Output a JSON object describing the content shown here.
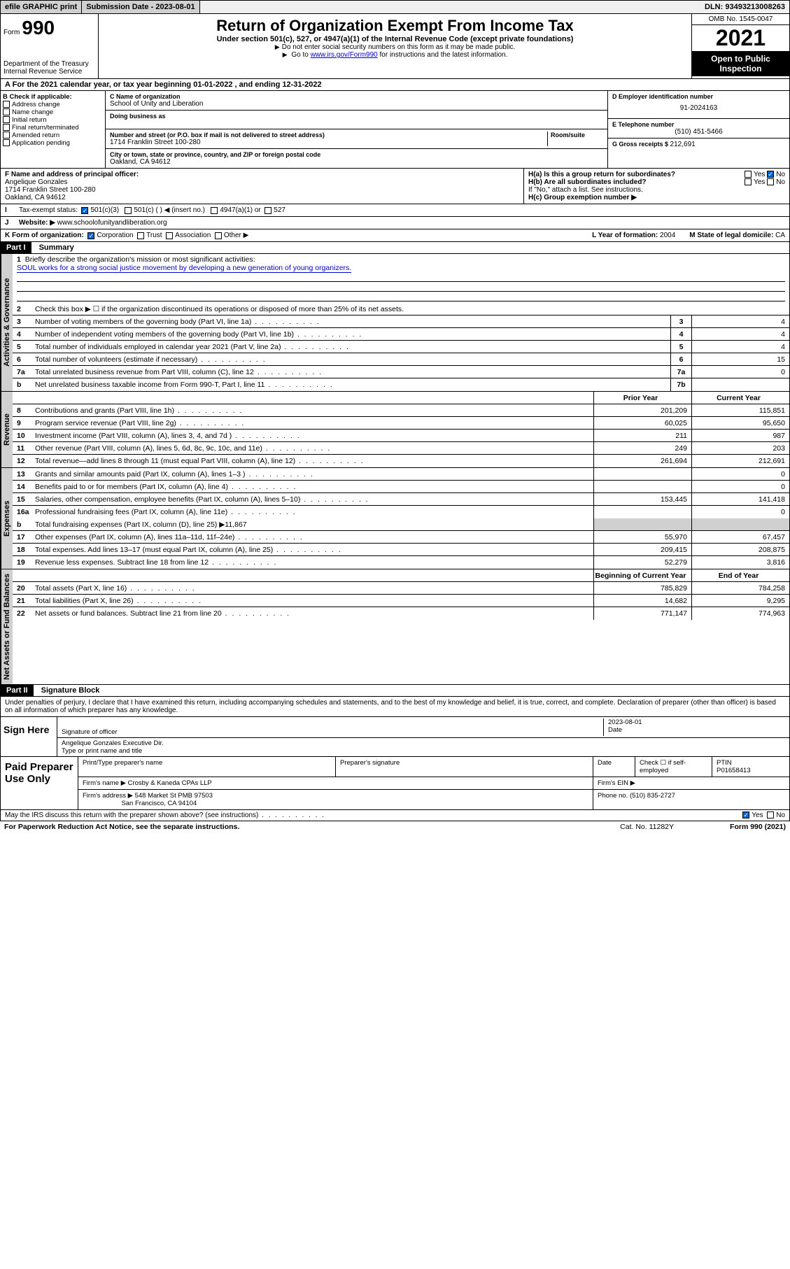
{
  "topbar": {
    "efile": "efile GRAPHIC print",
    "submission_label": "Submission Date - ",
    "submission_date": "2023-08-01",
    "dln_label": "DLN: ",
    "dln": "93493213008263"
  },
  "header": {
    "form_prefix": "Form",
    "form_number": "990",
    "dept": "Department of the Treasury",
    "irs": "Internal Revenue Service",
    "title": "Return of Organization Exempt From Income Tax",
    "subtitle": "Under section 501(c), 527, or 4947(a)(1) of the Internal Revenue Code (except private foundations)",
    "inst1": "Do not enter social security numbers on this form as it may be made public.",
    "inst2_pre": "Go to ",
    "inst2_link": "www.irs.gov/Form990",
    "inst2_post": " for instructions and the latest information.",
    "omb": "OMB No. 1545-0047",
    "year": "2021",
    "open": "Open to Public Inspection"
  },
  "row_a": {
    "text_pre": "For the 2021 calendar year, or tax year beginning ",
    "begin": "01-01-2022",
    "text_mid": " , and ending ",
    "end": "12-31-2022"
  },
  "b": {
    "heading": "B Check if applicable:",
    "items": [
      "Address change",
      "Name change",
      "Initial return",
      "Final return/terminated",
      "Amended return",
      "Application pending"
    ]
  },
  "c": {
    "name_lbl": "C Name of organization",
    "name": "School of Unity and Liberation",
    "dba_lbl": "Doing business as",
    "street_lbl": "Number and street (or P.O. box if mail is not delivered to street address)",
    "room_lbl": "Room/suite",
    "street": "1714 Franklin Street 100-280",
    "city_lbl": "City or town, state or province, country, and ZIP or foreign postal code",
    "city": "Oakland, CA  94612"
  },
  "d": {
    "ein_lbl": "D Employer identification number",
    "ein": "91-2024163",
    "phone_lbl": "E Telephone number",
    "phone": "(510) 451-5466",
    "gross_lbl": "G Gross receipts $ ",
    "gross": "212,691"
  },
  "f": {
    "lbl": "F Name and address of principal officer:",
    "name": "Angelique Gonzales",
    "addr1": "1714 Franklin Street 100-280",
    "addr2": "Oakland, CA  94612"
  },
  "h": {
    "a_lbl": "H(a)  Is this a group return for subordinates?",
    "a_yes": "Yes",
    "a_no": "No",
    "b_lbl": "H(b)  Are all subordinates included?",
    "b_yes": "Yes",
    "b_no": "No",
    "b_note": "If \"No,\" attach a list. See instructions.",
    "c_lbl": "H(c)  Group exemption number ▶"
  },
  "i": {
    "lbl": "Tax-exempt status:",
    "o1": "501(c)(3)",
    "o2": "501(c) (  ) ◀ (insert no.)",
    "o3": "4947(a)(1) or",
    "o4": "527"
  },
  "j": {
    "lbl": "Website: ▶",
    "val": "www.schoolofunityandliberation.org"
  },
  "k": {
    "lbl": "K Form of organization:",
    "o1": "Corporation",
    "o2": "Trust",
    "o3": "Association",
    "o4": "Other ▶",
    "l_lbl": "L Year of formation: ",
    "l_val": "2004",
    "m_lbl": "M State of legal domicile: ",
    "m_val": "CA"
  },
  "part1": {
    "header": "Part I",
    "title": "Summary",
    "tabs": {
      "gov": "Activities & Governance",
      "rev": "Revenue",
      "exp": "Expenses",
      "net": "Net Assets or Fund Balances"
    },
    "line1_lbl": "Briefly describe the organization's mission or most significant activities:",
    "line1_val": "SOUL works for a strong social justice movement by developing a new generation of young organizers.",
    "line2": "Check this box ▶ ☐  if the organization discontinued its operations or disposed of more than 25% of its net assets.",
    "lines_simple": [
      {
        "n": "3",
        "t": "Number of voting members of the governing body (Part VI, line 1a)",
        "b": "3",
        "v": "4"
      },
      {
        "n": "4",
        "t": "Number of independent voting members of the governing body (Part VI, line 1b)",
        "b": "4",
        "v": "4"
      },
      {
        "n": "5",
        "t": "Total number of individuals employed in calendar year 2021 (Part V, line 2a)",
        "b": "5",
        "v": "4"
      },
      {
        "n": "6",
        "t": "Total number of volunteers (estimate if necessary)",
        "b": "6",
        "v": "15"
      },
      {
        "n": "7a",
        "t": "Total unrelated business revenue from Part VIII, column (C), line 12",
        "b": "7a",
        "v": "0"
      },
      {
        "n": "b",
        "t": "Net unrelated business taxable income from Form 990-T, Part I, line 11",
        "b": "7b",
        "v": ""
      }
    ],
    "col_prior": "Prior Year",
    "col_current": "Current Year",
    "rev_lines": [
      {
        "n": "8",
        "t": "Contributions and grants (Part VIII, line 1h)",
        "p": "201,209",
        "c": "115,851"
      },
      {
        "n": "9",
        "t": "Program service revenue (Part VIII, line 2g)",
        "p": "60,025",
        "c": "95,650"
      },
      {
        "n": "10",
        "t": "Investment income (Part VIII, column (A), lines 3, 4, and 7d )",
        "p": "211",
        "c": "987"
      },
      {
        "n": "11",
        "t": "Other revenue (Part VIII, column (A), lines 5, 6d, 8c, 9c, 10c, and 11e)",
        "p": "249",
        "c": "203"
      },
      {
        "n": "12",
        "t": "Total revenue—add lines 8 through 11 (must equal Part VIII, column (A), line 12)",
        "p": "261,694",
        "c": "212,691"
      }
    ],
    "exp_lines": [
      {
        "n": "13",
        "t": "Grants and similar amounts paid (Part IX, column (A), lines 1–3 )",
        "p": "",
        "c": "0"
      },
      {
        "n": "14",
        "t": "Benefits paid to or for members (Part IX, column (A), line 4)",
        "p": "",
        "c": "0"
      },
      {
        "n": "15",
        "t": "Salaries, other compensation, employee benefits (Part IX, column (A), lines 5–10)",
        "p": "153,445",
        "c": "141,418"
      },
      {
        "n": "16a",
        "t": "Professional fundraising fees (Part IX, column (A), line 11e)",
        "p": "",
        "c": "0"
      }
    ],
    "line16b_t": "Total fundraising expenses (Part IX, column (D), line 25) ▶",
    "line16b_v": "11,867",
    "exp_lines2": [
      {
        "n": "17",
        "t": "Other expenses (Part IX, column (A), lines 11a–11d, 11f–24e)",
        "p": "55,970",
        "c": "67,457"
      },
      {
        "n": "18",
        "t": "Total expenses. Add lines 13–17 (must equal Part IX, column (A), line 25)",
        "p": "209,415",
        "c": "208,875"
      },
      {
        "n": "19",
        "t": "Revenue less expenses. Subtract line 18 from line 12",
        "p": "52,279",
        "c": "3,816"
      }
    ],
    "col_begin": "Beginning of Current Year",
    "col_end": "End of Year",
    "net_lines": [
      {
        "n": "20",
        "t": "Total assets (Part X, line 16)",
        "p": "785,829",
        "c": "784,258"
      },
      {
        "n": "21",
        "t": "Total liabilities (Part X, line 26)",
        "p": "14,682",
        "c": "9,295"
      },
      {
        "n": "22",
        "t": "Net assets or fund balances. Subtract line 21 from line 20",
        "p": "771,147",
        "c": "774,963"
      }
    ]
  },
  "part2": {
    "header": "Part II",
    "title": "Signature Block",
    "declare": "Under penalties of perjury, I declare that I have examined this return, including accompanying schedules and statements, and to the best of my knowledge and belief, it is true, correct, and complete. Declaration of preparer (other than officer) is based on all information of which preparer has any knowledge.",
    "sign_here": "Sign Here",
    "sig_officer": "Signature of officer",
    "sig_date": "2023-08-01",
    "date_lbl": "Date",
    "sig_name": "Angelique Gonzales  Executive Dir.",
    "sig_name_lbl": "Type or print name and title",
    "paid": "Paid Preparer Use Only",
    "prep_name_lbl": "Print/Type preparer's name",
    "prep_sig_lbl": "Preparer's signature",
    "prep_date_lbl": "Date",
    "prep_check_lbl": "Check ☐ if self-employed",
    "ptin_lbl": "PTIN",
    "ptin": "P01658413",
    "firm_name_lbl": "Firm's name    ▶",
    "firm_name": "Crosby & Kaneda CPAs LLP",
    "firm_ein_lbl": "Firm's EIN ▶",
    "firm_addr_lbl": "Firm's address ▶",
    "firm_addr1": "548 Market St PMB 97503",
    "firm_addr2": "San Francisco, CA  94104",
    "firm_phone_lbl": "Phone no. ",
    "firm_phone": "(510) 835-2727"
  },
  "footer": {
    "discuss": "May the IRS discuss this return with the preparer shown above? (see instructions)",
    "yes": "Yes",
    "no": "No",
    "paperwork": "For Paperwork Reduction Act Notice, see the separate instructions.",
    "cat": "Cat. No. 11282Y",
    "form": "Form 990 (2021)"
  },
  "colors": {
    "link": "#0000cc",
    "check": "#0066cc",
    "grey": "#d0d0d0"
  }
}
